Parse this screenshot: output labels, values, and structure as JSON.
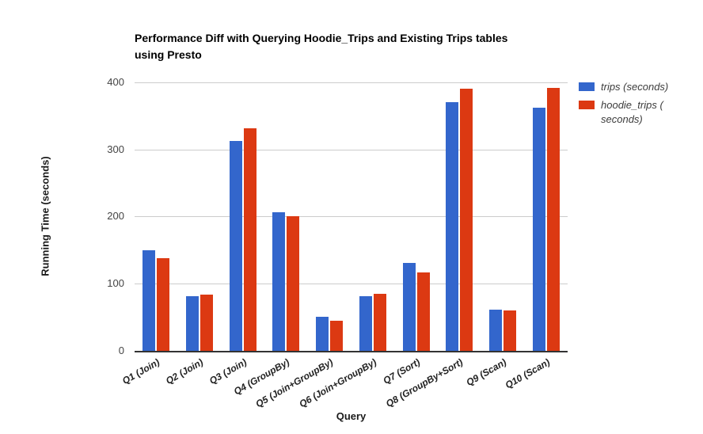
{
  "chart_data": {
    "type": "bar",
    "title": "Performance Diff with Querying Hoodie_Trips and Existing Trips tables using Presto",
    "title_lines": [
      "Performance Diff with Querying Hoodie_Trips and Existing Trips tables",
      "using Presto"
    ],
    "xlabel": "Query",
    "ylabel": "Running Time (seconds)",
    "categories": [
      "Q1 (Join)",
      "Q2 (Join)",
      "Q3 (Join)",
      "Q4 (GroupBy)",
      "Q5 (Join+GroupBy)",
      "Q6 (Join+GroupBy)",
      "Q7 (Sort)",
      "Q8 (GroupBy+Sort)",
      "Q9 (Scan)",
      "Q10 (Scan)"
    ],
    "series": [
      {
        "name": "trips (seconds)",
        "legend_lines": [
          "trips (seconds)"
        ],
        "color": "#3366cc",
        "values": [
          150,
          82,
          313,
          207,
          51,
          81,
          131,
          370,
          61,
          362
        ]
      },
      {
        "name": "hoodie_trips (seconds)",
        "legend_lines": [
          "hoodie_trips (",
          "seconds)"
        ],
        "color": "#dc3912",
        "values": [
          138,
          84,
          332,
          201,
          45,
          85,
          117,
          390,
          60,
          392
        ]
      }
    ],
    "ylim": [
      0,
      400
    ],
    "yticks": [
      0,
      100,
      200,
      300,
      400
    ],
    "grid": true,
    "legend_position": "right",
    "colors": {
      "gridline": "#cccccc",
      "axis_line": "#333333",
      "tick_label": "#444444",
      "axis_title": "#1a1a1a",
      "title": "#000000",
      "legend_text": "#3c3c3c"
    }
  }
}
